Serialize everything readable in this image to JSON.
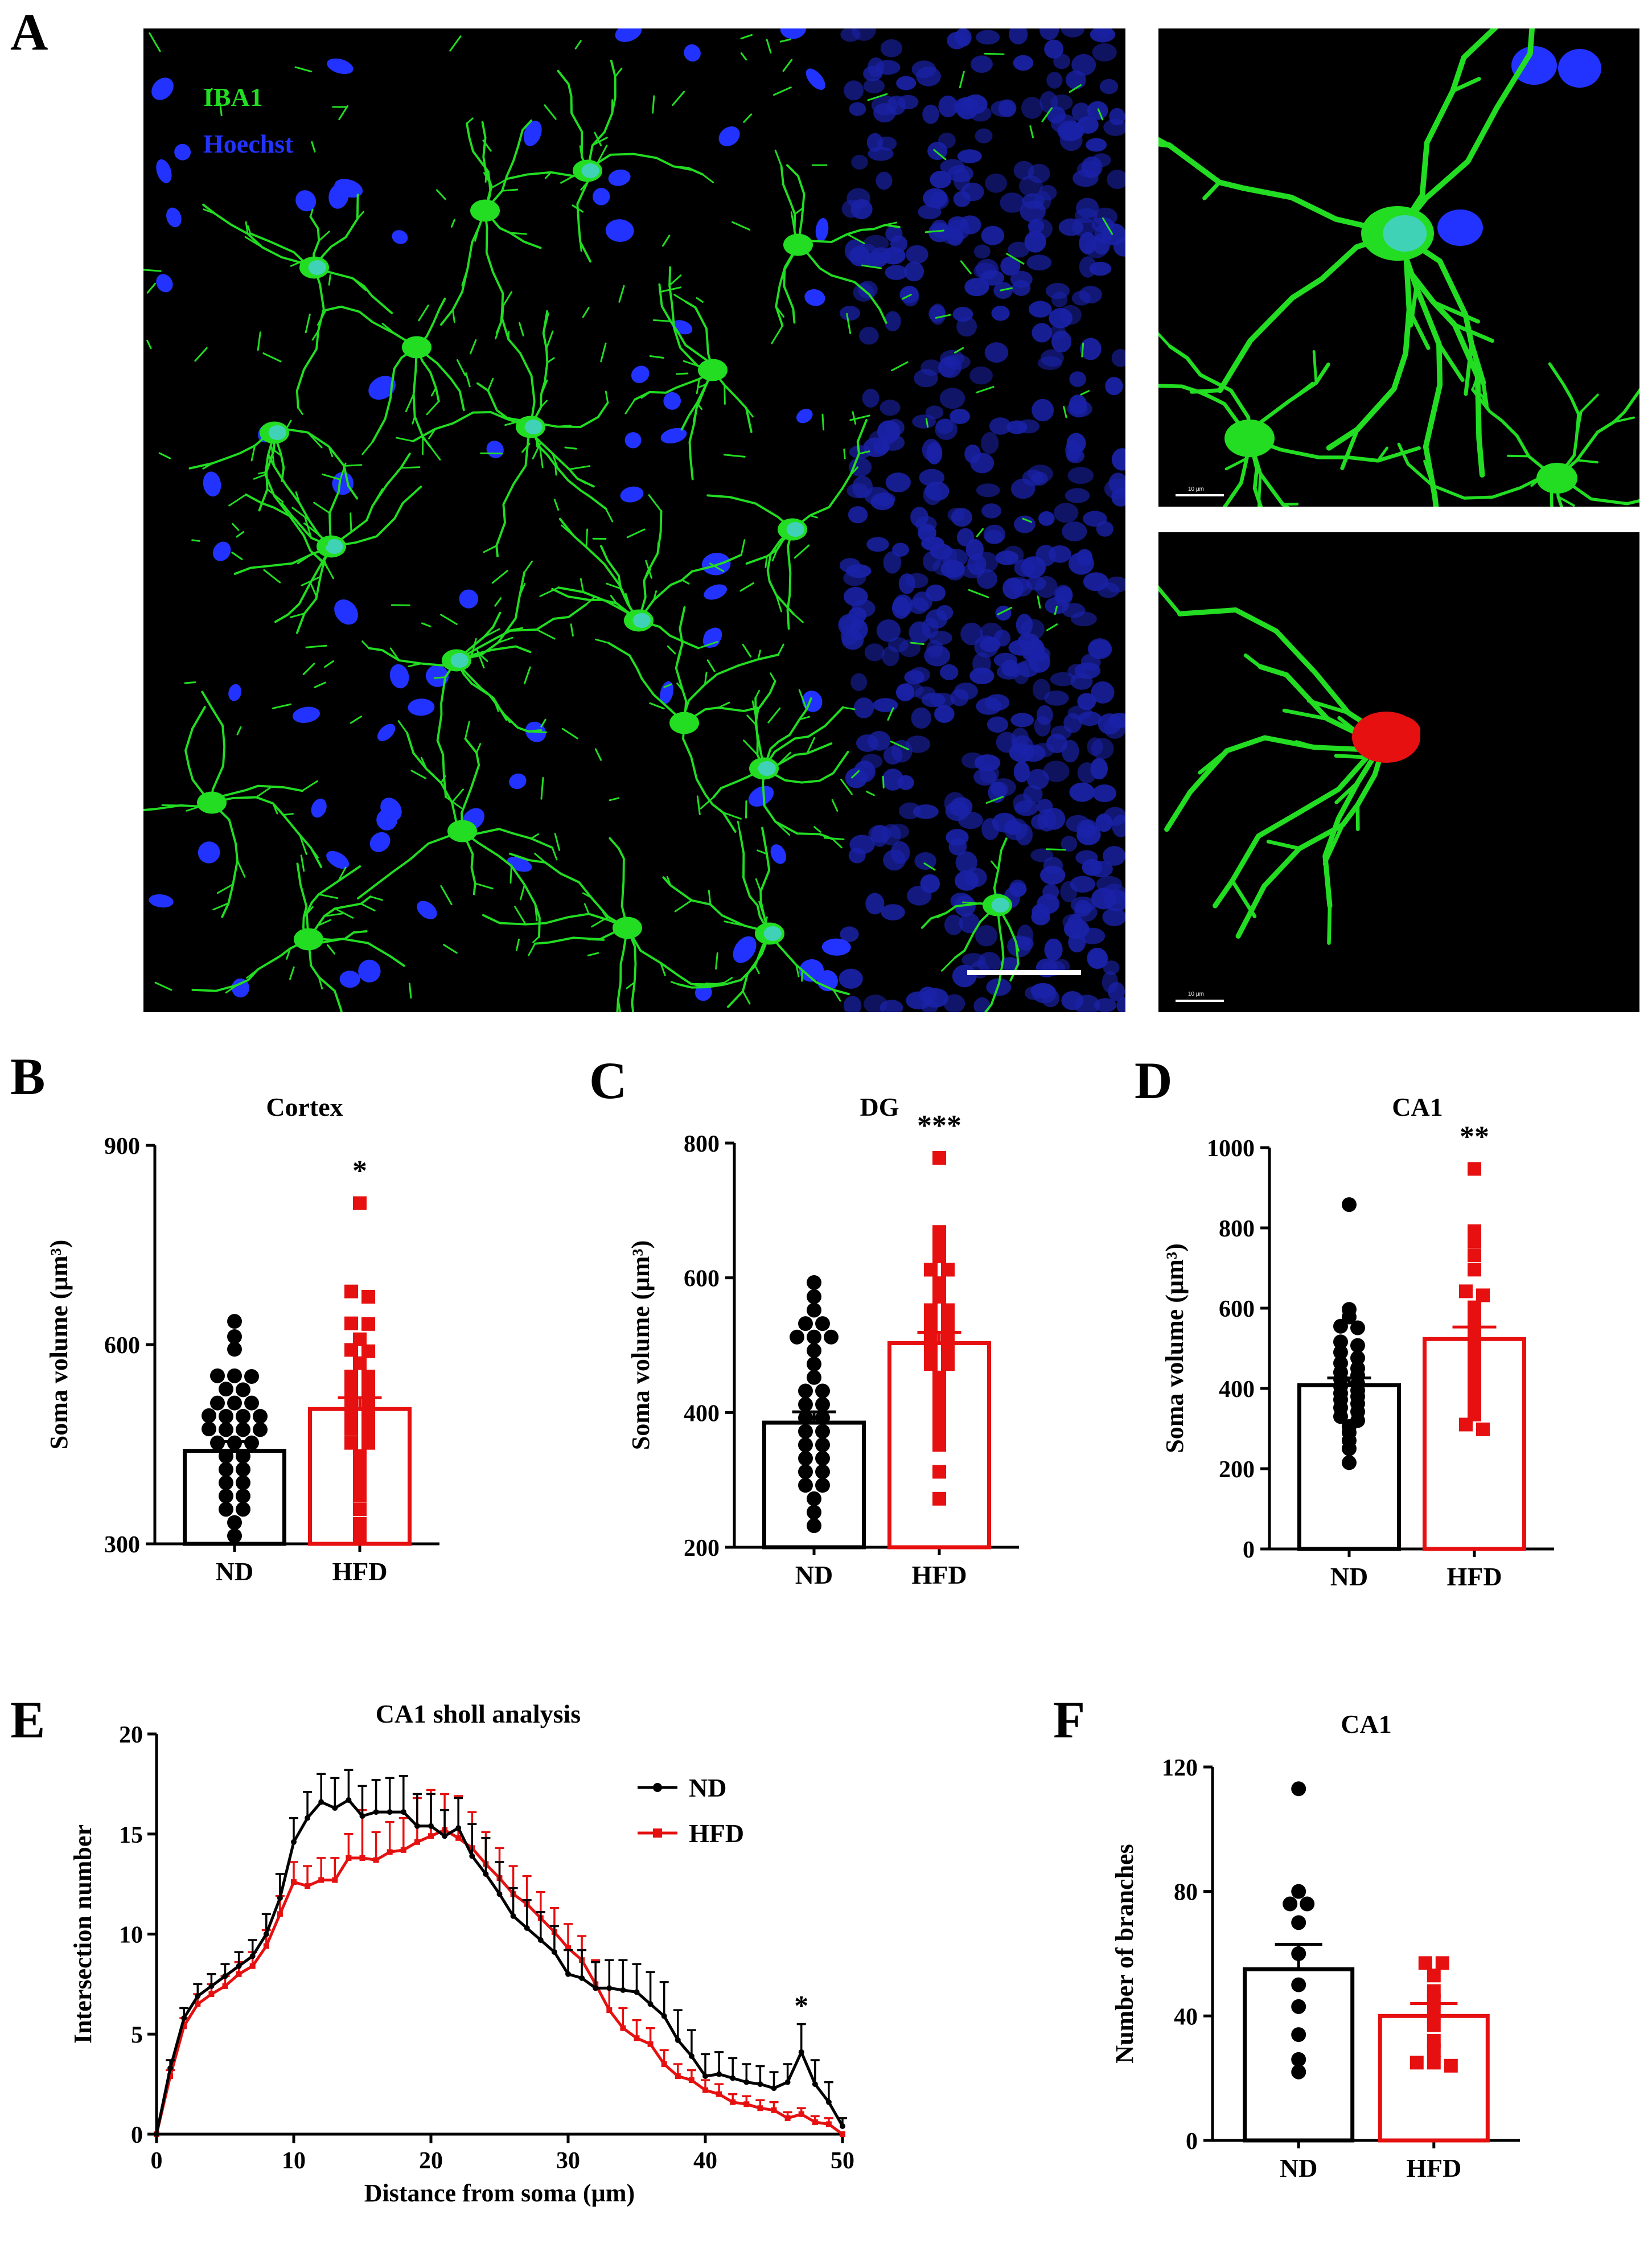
{
  "panels": {
    "A": "A",
    "B": "B",
    "C": "C",
    "D": "D",
    "E": "E",
    "F": "F"
  },
  "microscopy": {
    "main": {
      "label_iba1": "IBA1",
      "label_hoechst": "Hoechst",
      "iba1_color": "#22dd22",
      "hoechst_color": "#2233ff"
    },
    "inset_right_top": {
      "scale_text": "10 µm"
    },
    "inset_right_bottom": {
      "scale_text": "10 µm",
      "soma_color": "#e61010"
    }
  },
  "colors": {
    "nd": "#000000",
    "hfd": "#e61010"
  },
  "chart_data": [
    {
      "id": "B",
      "type": "bar",
      "title": "Cortex",
      "ylabel": "Soma volume (µm³)",
      "categories": [
        "ND",
        "HFD"
      ],
      "ylim": [
        300,
        900
      ],
      "yticks": [
        300,
        600,
        900
      ],
      "annotation": "*",
      "series": [
        {
          "name": "ND",
          "mean": 440,
          "sem": 14,
          "points": [
            635,
            612,
            593,
            553,
            552,
            553,
            532,
            533,
            512,
            512,
            512,
            492,
            492,
            493,
            492,
            472,
            472,
            473,
            472,
            452,
            452,
            452,
            432,
            432,
            412,
            412,
            392,
            392,
            372,
            372,
            352,
            352,
            332,
            312
          ]
        },
        {
          "name": "HFD",
          "mean": 503,
          "sem": 17,
          "points": [
            813,
            680,
            672,
            632,
            631,
            608,
            592,
            590,
            572,
            552,
            552,
            532,
            532,
            512,
            512,
            493,
            492,
            473,
            472,
            452,
            452,
            432,
            412,
            393,
            373,
            352,
            330,
            313
          ]
        }
      ]
    },
    {
      "id": "C",
      "type": "bar",
      "title": "DG",
      "ylabel": "Soma volume (µm³)",
      "categories": [
        "ND",
        "HFD"
      ],
      "ylim": [
        200,
        800
      ],
      "yticks": [
        200,
        400,
        600,
        800
      ],
      "annotation": "***",
      "series": [
        {
          "name": "ND",
          "mean": 385,
          "sem": 16,
          "points": [
            593,
            572,
            552,
            532,
            532,
            512,
            512,
            512,
            492,
            472,
            452,
            432,
            432,
            412,
            412,
            392,
            392,
            372,
            372,
            352,
            352,
            332,
            332,
            312,
            312,
            292,
            292,
            272,
            252,
            232
          ]
        },
        {
          "name": "HFD",
          "mean": 503,
          "sem": 16,
          "points": [
            778,
            668,
            652,
            632,
            612,
            612,
            592,
            572,
            552,
            552,
            532,
            532,
            512,
            512,
            492,
            492,
            472,
            472,
            452,
            432,
            412,
            392,
            372,
            352,
            312,
            272
          ]
        }
      ]
    },
    {
      "id": "D",
      "type": "bar",
      "title": "CA1",
      "ylabel": "Soma volume (µm³)",
      "categories": [
        "ND",
        "HFD"
      ],
      "ylim": [
        0,
        1000
      ],
      "yticks": [
        0,
        200,
        400,
        600,
        800,
        1000
      ],
      "annotation": "**",
      "series": [
        {
          "name": "ND",
          "mean": 408,
          "sem": 18,
          "points": [
            858,
            597,
            578,
            555,
            551,
            516,
            507,
            490,
            476,
            463,
            450,
            440,
            432,
            423,
            412,
            405,
            395,
            388,
            380,
            372,
            362,
            352,
            342,
            330,
            320,
            305,
            290,
            270,
            250,
            215
          ]
        },
        {
          "name": "HFD",
          "mean": 523,
          "sem": 30,
          "points": [
            947,
            792,
            767,
            732,
            696,
            642,
            632,
            602,
            572,
            555,
            530,
            515,
            500,
            480,
            460,
            440,
            420,
            400,
            380,
            360,
            335,
            310,
            298
          ]
        }
      ]
    },
    {
      "id": "E",
      "type": "line",
      "title": "CA1 sholl analysis",
      "xlabel": "Distance from soma (µm)",
      "ylabel": "Intersection number",
      "xlim": [
        0,
        50
      ],
      "ylim": [
        0,
        20
      ],
      "xticks": [
        0,
        10,
        20,
        30,
        40,
        50
      ],
      "yticks": [
        0,
        5,
        10,
        15,
        20
      ],
      "legend_position": "top-right",
      "annotation": {
        "text": "*",
        "x": 47
      },
      "x": [
        0,
        1,
        2,
        3,
        4,
        5,
        6,
        7,
        8,
        9,
        10,
        11,
        12,
        13,
        14,
        15,
        16,
        17,
        18,
        19,
        20,
        21,
        22,
        23,
        24,
        25,
        26,
        27,
        28,
        29,
        30,
        31,
        32,
        33,
        34,
        35,
        36,
        37,
        38,
        39,
        40,
        41,
        42,
        43,
        44,
        45,
        46,
        47,
        48,
        49,
        50
      ],
      "series": [
        {
          "name": "ND",
          "values": [
            0,
            3.3,
            5.8,
            6.9,
            7.4,
            7.9,
            8.4,
            8.9,
            10,
            11.8,
            14.6,
            15.8,
            16.6,
            16.3,
            16.7,
            15.9,
            16.1,
            16.1,
            16.1,
            15.4,
            15.4,
            14.9,
            15.3,
            13.9,
            13.0,
            12.0,
            10.9,
            10.3,
            9.7,
            9.1,
            8.0,
            7.8,
            7.3,
            7.3,
            7.2,
            7.1,
            6.5,
            5.9,
            4.7,
            3.9,
            2.9,
            3.0,
            2.8,
            2.6,
            2.5,
            2.3,
            2.6,
            4.1,
            2.5,
            1.6,
            0.4
          ],
          "err": [
            0,
            0.4,
            0.5,
            0.6,
            0.6,
            0.6,
            0.7,
            0.8,
            1.0,
            1.2,
            1.2,
            1.3,
            1.4,
            1.5,
            1.5,
            1.5,
            1.6,
            1.7,
            1.8,
            1.6,
            1.6,
            1.3,
            1.5,
            1.6,
            1.8,
            1.6,
            1.4,
            1.4,
            1.4,
            1.3,
            1.2,
            1.4,
            1.3,
            1.4,
            1.5,
            1.4,
            1.6,
            1.7,
            1.5,
            1.3,
            1.1,
            1.1,
            1.0,
            0.9,
            0.9,
            0.8,
            0.9,
            1.4,
            1.2,
            1.0,
            0.4
          ]
        },
        {
          "name": "HFD",
          "values": [
            0,
            2.9,
            5.4,
            6.5,
            7.0,
            7.4,
            8.0,
            8.4,
            9.4,
            11.0,
            12.6,
            12.4,
            12.7,
            12.7,
            13.8,
            13.8,
            13.7,
            14.1,
            14.2,
            14.6,
            14.9,
            15.2,
            14.8,
            14.3,
            13.5,
            12.8,
            12.0,
            11.5,
            10.8,
            10.1,
            9.3,
            8.7,
            7.5,
            6.2,
            5.3,
            4.8,
            4.5,
            3.5,
            2.9,
            2.7,
            2.2,
            2.0,
            1.6,
            1.5,
            1.3,
            1.2,
            0.8,
            1.0,
            0.6,
            0.5,
            0.0
          ],
          "err": [
            0,
            0.3,
            0.4,
            0.5,
            0.5,
            0.5,
            0.6,
            0.7,
            0.8,
            0.9,
            1.0,
            1.0,
            1.1,
            1.1,
            1.2,
            2.4,
            1.4,
            1.5,
            1.6,
            2.2,
            2.3,
            1.8,
            2.1,
            1.8,
            1.6,
            1.5,
            1.4,
            1.4,
            1.3,
            1.2,
            1.2,
            1.2,
            1.2,
            1.1,
            1.0,
            0.9,
            0.8,
            0.7,
            0.6,
            0.5,
            0.5,
            0.5,
            0.4,
            0.4,
            0.4,
            0.4,
            0.3,
            0.3,
            0.3,
            0.3,
            0
          ]
        }
      ]
    },
    {
      "id": "F",
      "type": "bar",
      "title": "CA1",
      "ylabel": "Number of branches",
      "categories": [
        "ND",
        "HFD"
      ],
      "ylim": [
        0,
        120
      ],
      "yticks": [
        0,
        40,
        80,
        120
      ],
      "series": [
        {
          "name": "ND",
          "mean": 55,
          "sem": 8,
          "points": [
            113,
            80,
            76,
            76,
            70,
            60,
            50,
            43,
            34,
            26,
            22
          ]
        },
        {
          "name": "HFD",
          "mean": 40,
          "sem": 4,
          "points": [
            57,
            57,
            53,
            48,
            45,
            41,
            37,
            32,
            29,
            25,
            25,
            24
          ]
        }
      ]
    }
  ]
}
